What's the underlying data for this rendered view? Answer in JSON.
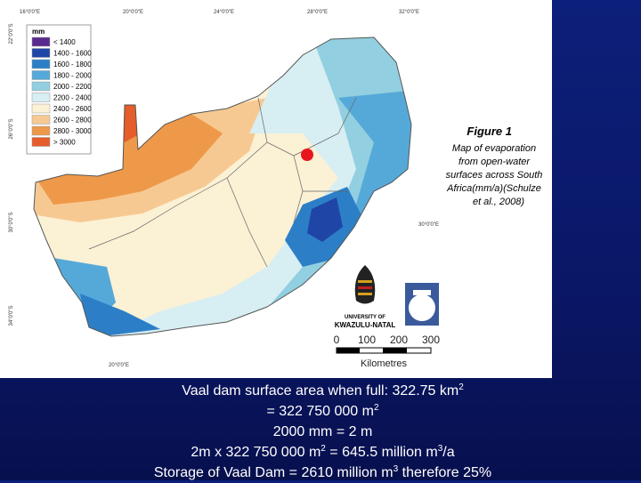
{
  "map": {
    "top_coords": [
      "16°0'0\"E",
      "20°0'0\"E",
      "24°0'0\"E",
      "28°0'0\"E",
      "32°0'0\"E"
    ],
    "left_coords": [
      "22°0'0\"S",
      "26°0'0\"S",
      "30°0'0\"S",
      "34°0'0\"S"
    ],
    "right_coord": "30°0'0\"E",
    "bottom_coord": "20°0'0\"E",
    "legend": {
      "title": "mm",
      "items": [
        {
          "label": "< 1400",
          "color": "#5b2a8e"
        },
        {
          "label": "1400 - 1600",
          "color": "#1f45a6"
        },
        {
          "label": "1600 - 1800",
          "color": "#2c7fc6"
        },
        {
          "label": "1800 - 2000",
          "color": "#55a9d9"
        },
        {
          "label": "2000 - 2200",
          "color": "#92cfe0"
        },
        {
          "label": "2200 - 2400",
          "color": "#d7eef3"
        },
        {
          "label": "2400 - 2600",
          "color": "#fbf1d5"
        },
        {
          "label": "2600 - 2800",
          "color": "#f7c992"
        },
        {
          "label": "2800 - 3000",
          "color": "#ee994a"
        },
        {
          "label": "> 3000",
          "color": "#e45d2a"
        }
      ]
    },
    "caption": {
      "title": "Figure 1",
      "lines": [
        "Map of evaporation",
        "from open-water",
        "surfaces across South",
        "Africa(mm/a)(Schulze",
        "et al., 2008)"
      ]
    },
    "university": [
      "UNIVERSITY OF",
      "KWAZULU-NATAL"
    ],
    "scale": {
      "ticks": [
        "0",
        "100",
        "200",
        "300"
      ],
      "unit": "Kilometres"
    }
  },
  "text_lines": [
    [
      {
        "t": "Vaal dam surface area when full: 322.75 km"
      },
      {
        "t": "2",
        "sup": true
      }
    ],
    [
      {
        "t": "= 322 750 000 m"
      },
      {
        "t": "2",
        "sup": true
      }
    ],
    [
      {
        "t": "2000 mm = 2 m"
      }
    ],
    [
      {
        "t": "2m x 322 750 000 m"
      },
      {
        "t": "2",
        "sup": true
      },
      {
        "t": " = 645.5 million m"
      },
      {
        "t": "3",
        "sup": true
      },
      {
        "t": "/a"
      }
    ],
    [
      {
        "t": "Storage of Vaal Dam = 2610 million m"
      },
      {
        "t": "3",
        "sup": true
      },
      {
        "t": " therefore 25%"
      }
    ]
  ]
}
